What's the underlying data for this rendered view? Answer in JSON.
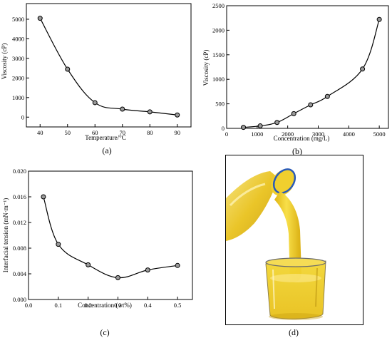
{
  "chart_data": [
    {
      "type": "scatter",
      "panel": "a",
      "xlabel": "Temperature/°C",
      "ylabel": "Viscosity (cP)",
      "xlim": [
        35,
        95
      ],
      "ylim": [
        -500,
        5800
      ],
      "xticks": [
        40,
        50,
        60,
        70,
        80,
        90
      ],
      "yticks": [
        0,
        1000,
        2000,
        3000,
        4000,
        5000
      ],
      "ytick_labels": [
        "0",
        "1000",
        "2000",
        "3000",
        "4000",
        "5000"
      ],
      "grid": false,
      "legend": "none",
      "x": [
        40,
        50,
        60,
        70,
        80,
        90
      ],
      "y": [
        5050,
        2450,
        740,
        410,
        270,
        110
      ]
    },
    {
      "type": "scatter",
      "panel": "b",
      "xlabel": "Concentration (mg/L)",
      "ylabel": "Viscosity (cP)",
      "xlim": [
        0,
        5300
      ],
      "ylim": [
        0,
        2500
      ],
      "xticks": [
        0,
        1000,
        2000,
        3000,
        4000,
        5000
      ],
      "yticks": [
        0,
        500,
        1000,
        1500,
        2000,
        2500
      ],
      "ytick_labels": [
        "0",
        "500",
        "1000",
        "1500",
        "2000",
        "2500"
      ],
      "grid": false,
      "legend": "none",
      "x": [
        550,
        1100,
        1650,
        2200,
        2750,
        3300,
        4450,
        5000
      ],
      "y": [
        20,
        50,
        120,
        300,
        480,
        650,
        1210,
        2220
      ]
    },
    {
      "type": "scatter",
      "panel": "c",
      "xlabel": "Concentration (wt%)",
      "ylabel": "Interfacial tension (mN·m⁻¹)",
      "xlim": [
        0,
        0.55
      ],
      "ylim": [
        0,
        0.02
      ],
      "xticks": [
        0.0,
        0.1,
        0.2,
        0.3,
        0.4,
        0.5
      ],
      "yticks": [
        0,
        0.004,
        0.008,
        0.012,
        0.016,
        0.02
      ],
      "ytick_labels": [
        "0.000",
        "0.004",
        "0.008",
        "0.012",
        "0.016",
        "0.020"
      ],
      "grid": false,
      "legend": "none",
      "x": [
        0.05,
        0.1,
        0.2,
        0.3,
        0.4,
        0.5
      ],
      "y": [
        0.016,
        0.0086,
        0.0054,
        0.0034,
        0.0046,
        0.0053
      ]
    }
  ],
  "captions": {
    "a": "(a)",
    "b": "(b)",
    "c": "(c)",
    "d": "(d)"
  },
  "colors": {
    "liquid": "#f2d21c",
    "liquid_dark": "#d9a90e",
    "line": "#000000",
    "marker_fill": "#9a9a9a"
  }
}
